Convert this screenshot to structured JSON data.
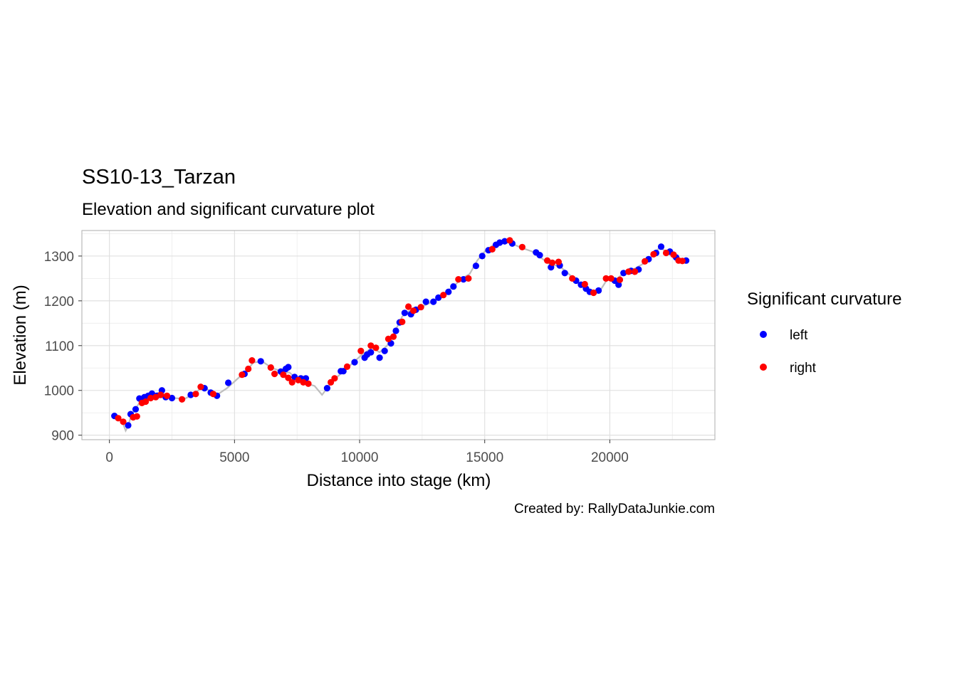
{
  "chart_data": {
    "type": "scatter",
    "title": "SS10-13_Tarzan",
    "subtitle": "Elevation and significant curvature plot",
    "xlabel": "Distance into stage (km)",
    "ylabel": "Elevation (m)",
    "caption": "Created by: RallyDataJunkie.com",
    "xlim": [
      -1100,
      24200
    ],
    "ylim": [
      890,
      1357
    ],
    "x_ticks": [
      0,
      5000,
      10000,
      15000,
      20000
    ],
    "x_tick_labels": [
      "0",
      "5000",
      "10000",
      "15000",
      "20000"
    ],
    "y_ticks": [
      900,
      1000,
      1100,
      1200,
      1300
    ],
    "y_tick_labels": [
      "900",
      "1000",
      "1100",
      "1200",
      "1300"
    ],
    "grid": true,
    "legend": {
      "title": "Significant curvature",
      "position": "right",
      "entries": [
        {
          "label": "left",
          "color": "#0000ff"
        },
        {
          "label": "right",
          "color": "#ff0000"
        }
      ]
    },
    "profile_color": "#bebebe",
    "profile": [
      [
        150,
        945
      ],
      [
        400,
        935
      ],
      [
        550,
        925
      ],
      [
        650,
        910
      ],
      [
        750,
        920
      ],
      [
        850,
        940
      ],
      [
        1050,
        960
      ],
      [
        1300,
        980
      ],
      [
        1600,
        990
      ],
      [
        2000,
        995
      ],
      [
        2300,
        990
      ],
      [
        2600,
        983
      ],
      [
        3000,
        981
      ],
      [
        3400,
        993
      ],
      [
        3700,
        1007
      ],
      [
        4000,
        1000
      ],
      [
        4300,
        990
      ],
      [
        4700,
        1005
      ],
      [
        5100,
        1025
      ],
      [
        5500,
        1045
      ],
      [
        5750,
        1062
      ],
      [
        6100,
        1065
      ],
      [
        6500,
        1050
      ],
      [
        7000,
        1040
      ],
      [
        7200,
        1040
      ],
      [
        7500,
        1025
      ],
      [
        7900,
        1015
      ],
      [
        8200,
        1010
      ],
      [
        8500,
        990
      ],
      [
        8700,
        1005
      ],
      [
        9000,
        1025
      ],
      [
        9400,
        1045
      ],
      [
        9800,
        1065
      ],
      [
        10100,
        1080
      ],
      [
        10500,
        1095
      ],
      [
        10800,
        1085
      ],
      [
        11100,
        1100
      ],
      [
        11400,
        1130
      ],
      [
        11700,
        1165
      ],
      [
        12000,
        1178
      ],
      [
        12400,
        1185
      ],
      [
        12800,
        1195
      ],
      [
        13200,
        1210
      ],
      [
        13700,
        1230
      ],
      [
        14100,
        1250
      ],
      [
        14400,
        1260
      ],
      [
        14700,
        1290
      ],
      [
        15000,
        1310
      ],
      [
        15300,
        1323
      ],
      [
        15700,
        1330
      ],
      [
        16000,
        1330
      ],
      [
        16400,
        1320
      ],
      [
        16900,
        1310
      ],
      [
        17200,
        1298
      ],
      [
        17600,
        1282
      ],
      [
        18000,
        1277
      ],
      [
        18400,
        1258
      ],
      [
        18800,
        1235
      ],
      [
        19200,
        1222
      ],
      [
        19600,
        1222
      ],
      [
        19900,
        1248
      ],
      [
        20200,
        1245
      ],
      [
        20600,
        1264
      ],
      [
        21000,
        1272
      ],
      [
        21400,
        1285
      ],
      [
        21700,
        1300
      ],
      [
        22000,
        1320
      ],
      [
        22400,
        1303
      ],
      [
        22800,
        1292
      ],
      [
        23100,
        1290
      ]
    ],
    "series": [
      {
        "name": "left",
        "color": "#0000ff",
        "points": [
          [
            200,
            943
          ],
          [
            750,
            922
          ],
          [
            850,
            947
          ],
          [
            1050,
            958
          ],
          [
            1200,
            982
          ],
          [
            1400,
            985
          ],
          [
            1550,
            988
          ],
          [
            1700,
            993
          ],
          [
            1900,
            988
          ],
          [
            2100,
            1000
          ],
          [
            2250,
            985
          ],
          [
            2500,
            983
          ],
          [
            3250,
            990
          ],
          [
            3800,
            1005
          ],
          [
            4050,
            995
          ],
          [
            4300,
            988
          ],
          [
            4750,
            1017
          ],
          [
            5400,
            1037
          ],
          [
            6050,
            1065
          ],
          [
            6850,
            1042
          ],
          [
            7050,
            1048
          ],
          [
            7150,
            1052
          ],
          [
            7400,
            1030
          ],
          [
            7650,
            1027
          ],
          [
            7850,
            1027
          ],
          [
            8700,
            1005
          ],
          [
            9250,
            1043
          ],
          [
            9350,
            1043
          ],
          [
            9800,
            1063
          ],
          [
            10200,
            1073
          ],
          [
            10300,
            1080
          ],
          [
            10450,
            1085
          ],
          [
            10800,
            1073
          ],
          [
            11000,
            1088
          ],
          [
            11250,
            1105
          ],
          [
            11450,
            1133
          ],
          [
            11600,
            1152
          ],
          [
            11800,
            1173
          ],
          [
            12050,
            1170
          ],
          [
            12250,
            1180
          ],
          [
            12650,
            1198
          ],
          [
            12950,
            1198
          ],
          [
            13150,
            1207
          ],
          [
            13550,
            1220
          ],
          [
            13750,
            1232
          ],
          [
            14150,
            1248
          ],
          [
            14650,
            1278
          ],
          [
            14900,
            1300
          ],
          [
            15150,
            1313
          ],
          [
            15450,
            1325
          ],
          [
            15600,
            1330
          ],
          [
            15800,
            1333
          ],
          [
            16100,
            1328
          ],
          [
            17050,
            1308
          ],
          [
            17200,
            1302
          ],
          [
            17650,
            1275
          ],
          [
            18000,
            1279
          ],
          [
            18200,
            1262
          ],
          [
            18650,
            1245
          ],
          [
            18850,
            1236
          ],
          [
            19050,
            1227
          ],
          [
            19200,
            1220
          ],
          [
            19550,
            1223
          ],
          [
            20200,
            1245
          ],
          [
            20350,
            1236
          ],
          [
            20550,
            1262
          ],
          [
            20850,
            1267
          ],
          [
            21150,
            1270
          ],
          [
            21550,
            1293
          ],
          [
            21850,
            1307
          ],
          [
            22050,
            1321
          ],
          [
            22400,
            1310
          ],
          [
            22650,
            1297
          ],
          [
            23050,
            1290
          ]
        ]
      },
      {
        "name": "right",
        "color": "#ff0000",
        "points": [
          [
            350,
            938
          ],
          [
            550,
            930
          ],
          [
            950,
            940
          ],
          [
            1100,
            942
          ],
          [
            1300,
            972
          ],
          [
            1450,
            975
          ],
          [
            1650,
            983
          ],
          [
            1850,
            985
          ],
          [
            2050,
            990
          ],
          [
            2300,
            988
          ],
          [
            2900,
            980
          ],
          [
            3450,
            992
          ],
          [
            3650,
            1008
          ],
          [
            4150,
            992
          ],
          [
            5300,
            1035
          ],
          [
            5550,
            1048
          ],
          [
            5700,
            1067
          ],
          [
            6450,
            1051
          ],
          [
            6600,
            1037
          ],
          [
            6950,
            1035
          ],
          [
            7150,
            1028
          ],
          [
            7300,
            1018
          ],
          [
            7550,
            1023
          ],
          [
            7750,
            1018
          ],
          [
            7950,
            1015
          ],
          [
            8850,
            1018
          ],
          [
            9000,
            1027
          ],
          [
            9500,
            1053
          ],
          [
            10050,
            1088
          ],
          [
            10450,
            1100
          ],
          [
            10650,
            1095
          ],
          [
            11150,
            1115
          ],
          [
            11350,
            1120
          ],
          [
            11700,
            1153
          ],
          [
            11950,
            1187
          ],
          [
            12150,
            1178
          ],
          [
            12450,
            1186
          ],
          [
            13350,
            1213
          ],
          [
            13950,
            1248
          ],
          [
            14350,
            1250
          ],
          [
            15300,
            1315
          ],
          [
            16000,
            1335
          ],
          [
            16500,
            1320
          ],
          [
            17500,
            1290
          ],
          [
            17700,
            1285
          ],
          [
            17950,
            1287
          ],
          [
            18500,
            1250
          ],
          [
            19000,
            1237
          ],
          [
            19350,
            1218
          ],
          [
            19850,
            1250
          ],
          [
            20050,
            1250
          ],
          [
            20400,
            1247
          ],
          [
            20750,
            1265
          ],
          [
            21000,
            1265
          ],
          [
            21400,
            1288
          ],
          [
            21750,
            1304
          ],
          [
            22250,
            1307
          ],
          [
            22550,
            1303
          ],
          [
            22750,
            1290
          ],
          [
            22900,
            1289
          ]
        ]
      }
    ]
  }
}
